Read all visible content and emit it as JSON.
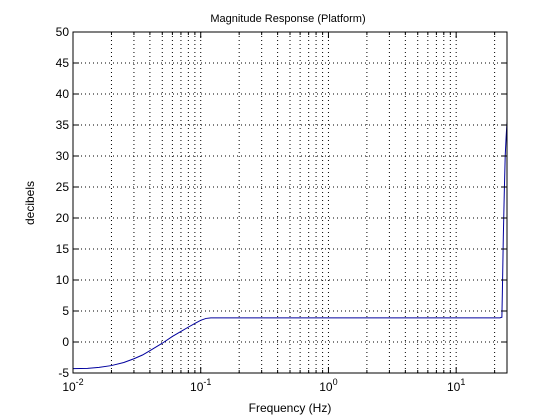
{
  "chart_data": {
    "type": "line",
    "title": "Magnitude Response (Platform)",
    "xlabel": "Frequency (Hz)",
    "ylabel": "decibels",
    "xscale": "log",
    "xlim": [
      0.01,
      25
    ],
    "ylim": [
      -5,
      50
    ],
    "grid": true,
    "grid_style": "dotted",
    "legend": "none",
    "x_ticks": [
      {
        "value": 0.01,
        "base": "10",
        "exp": "-2"
      },
      {
        "value": 0.1,
        "base": "10",
        "exp": "-1"
      },
      {
        "value": 1,
        "base": "10",
        "exp": "0"
      },
      {
        "value": 10,
        "base": "10",
        "exp": "1"
      }
    ],
    "y_ticks": [
      -5,
      0,
      5,
      10,
      15,
      20,
      25,
      30,
      35,
      40,
      45,
      50
    ],
    "series": [
      {
        "color": "#00009e",
        "x": [
          0.01,
          0.013,
          0.016,
          0.02,
          0.025,
          0.03,
          0.035,
          0.04,
          0.05,
          0.06,
          0.07,
          0.08,
          0.09,
          0.1,
          0.11,
          0.12,
          0.13,
          0.5,
          2,
          10,
          20,
          22,
          22.8,
          23,
          23.4,
          23.8,
          24.2,
          24.6,
          25
        ],
        "y": [
          -4.3,
          -4.25,
          -4.1,
          -3.8,
          -3.3,
          -2.7,
          -2.1,
          -1.4,
          -0.2,
          0.9,
          1.7,
          2.4,
          3.0,
          3.5,
          3.8,
          3.9,
          3.9,
          3.9,
          3.9,
          3.9,
          3.9,
          3.9,
          4.0,
          8.0,
          17.0,
          24.0,
          30.0,
          33.0,
          35.5
        ]
      }
    ],
    "colors": {
      "line": "#00009e",
      "axes": "#000000",
      "grid": "#000000",
      "background": "#ffffff"
    }
  }
}
